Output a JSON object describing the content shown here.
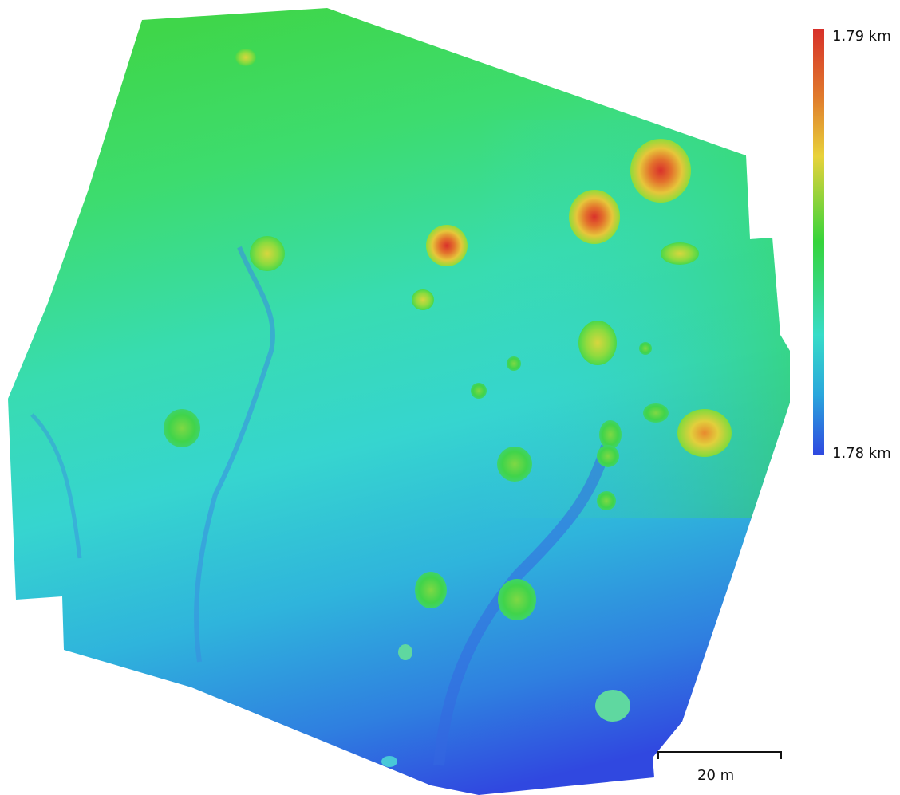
{
  "legend": {
    "max_label": "1.79 km",
    "min_label": "1.78 km",
    "colors": [
      "#d7302a",
      "#e07a2c",
      "#e8d23a",
      "#36d43a",
      "#37dcc8",
      "#2aa6dc",
      "#2f49e0"
    ]
  },
  "scale_bar": {
    "label": "20 m"
  },
  "map": {
    "type": "elevation-dem",
    "background_color": "#ffffff"
  }
}
